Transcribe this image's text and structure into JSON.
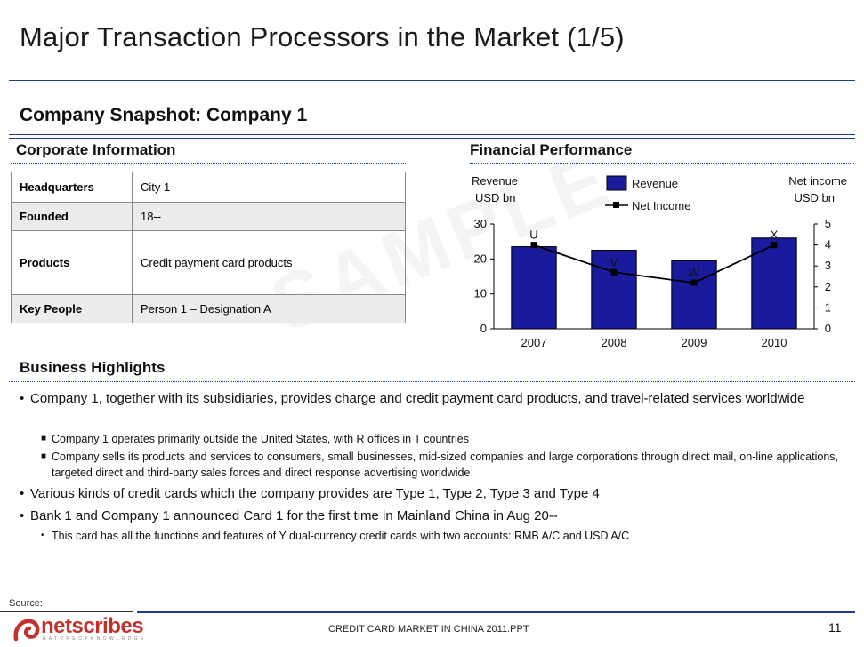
{
  "page": {
    "title": "Major Transaction Processors in the Market (1/5)",
    "subtitle": "Company Snapshot: Company 1",
    "watermark": "SAMPLE"
  },
  "corporate": {
    "heading": "Corporate Information",
    "rows": [
      {
        "key": "Headquarters",
        "value": "City 1"
      },
      {
        "key": "Founded",
        "value": "18--"
      },
      {
        "key": "Products",
        "value": "Credit payment card products"
      },
      {
        "key": "Key People",
        "value": "Person 1 – Designation A"
      }
    ]
  },
  "financial": {
    "heading": "Financial Performance"
  },
  "chart_data": {
    "type": "bar",
    "categories": [
      "2007",
      "2008",
      "2009",
      "2010"
    ],
    "series": [
      {
        "name": "Revenue",
        "kind": "bar",
        "axis": "left",
        "values": [
          23.5,
          22.5,
          19.5,
          26
        ],
        "color": "#1a1a9c"
      },
      {
        "name": "Net Income",
        "kind": "line",
        "axis": "right",
        "values": [
          4,
          2.7,
          2.2,
          4
        ],
        "point_labels": [
          "U",
          "V",
          "W",
          "X"
        ],
        "color": "#000000"
      }
    ],
    "y_left": {
      "label_line1": "Revenue",
      "label_line2": "USD bn",
      "range": [
        0,
        30
      ],
      "ticks": [
        "0",
        "10",
        "20",
        "30"
      ]
    },
    "y_right": {
      "label_line1": "Net income",
      "label_line2": "USD bn",
      "range": [
        0,
        5
      ],
      "ticks": [
        "0",
        "1",
        "2",
        "3",
        "4",
        "5"
      ]
    },
    "legend": [
      "Revenue",
      "Net Income"
    ],
    "legend_position": "top-center",
    "grid": false
  },
  "highlights": {
    "heading": "Business Highlights",
    "b1": "Company 1, together with its subsidiaries, provides charge and credit payment card products, and travel-related services worldwide",
    "b1_sub1": "Company 1 operates primarily outside the United States, with R offices in T countries",
    "b1_sub2": "Company sells its products and services to consumers, small businesses, mid-sized companies and large corporations through direct mail, on-line applications, targeted direct and third-party sales forces and direct response advertising worldwide",
    "b2": "Various kinds of credit cards which the company provides are Type 1, Type 2, Type 3 and Type 4",
    "b3": "Bank 1 and Company 1 announced  Card 1 for the first time in Mainland China in Aug 20--",
    "b3_sub1": "This card has all the functions and features of Y dual-currency credit cards with two accounts: RMB A/C and USD A/C"
  },
  "footer": {
    "source": "Source:",
    "logo": "netscribes",
    "tagline": "N A T U R E   O F   K N O W L E D G E",
    "doc": "CREDIT  CARD MARKET IN CHINA 2011.PPT",
    "page_number": "11"
  },
  "colors": {
    "accent": "#1f3a93",
    "bar": "#1a1a9c",
    "logo": "#c4312b"
  }
}
